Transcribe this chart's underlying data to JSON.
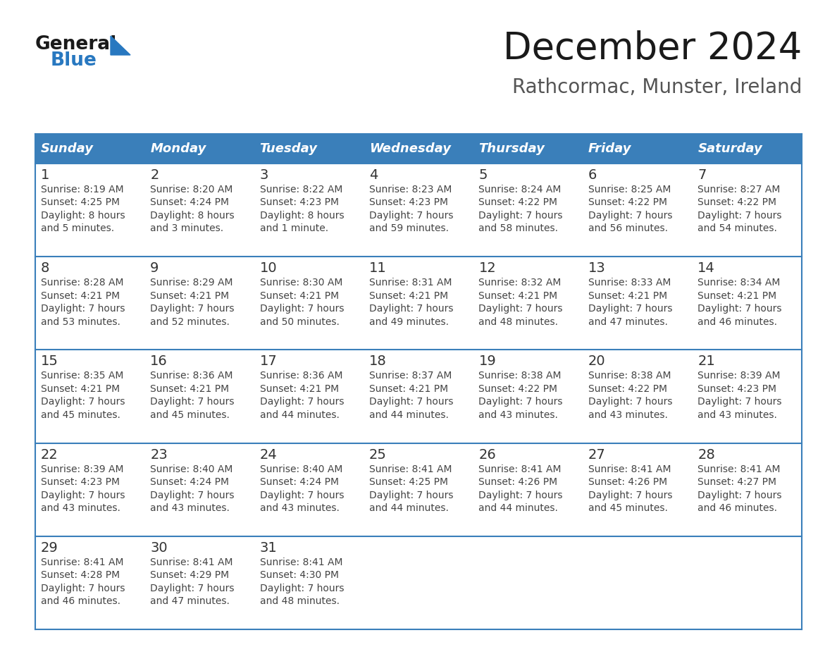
{
  "title": "December 2024",
  "subtitle": "Rathcormac, Munster, Ireland",
  "header_bg": "#3a7fba",
  "header_text_color": "#ffffff",
  "day_names": [
    "Sunday",
    "Monday",
    "Tuesday",
    "Wednesday",
    "Thursday",
    "Friday",
    "Saturday"
  ],
  "cell_bg": "#ffffff",
  "border_color": "#3a7fba",
  "day_number_color": "#333333",
  "info_color": "#444444",
  "weeks": [
    [
      {
        "day": 1,
        "sunrise": "8:19 AM",
        "sunset": "4:25 PM",
        "daylight": "8 hours",
        "daylight2": "and 5 minutes."
      },
      {
        "day": 2,
        "sunrise": "8:20 AM",
        "sunset": "4:24 PM",
        "daylight": "8 hours",
        "daylight2": "and 3 minutes."
      },
      {
        "day": 3,
        "sunrise": "8:22 AM",
        "sunset": "4:23 PM",
        "daylight": "8 hours",
        "daylight2": "and 1 minute."
      },
      {
        "day": 4,
        "sunrise": "8:23 AM",
        "sunset": "4:23 PM",
        "daylight": "7 hours",
        "daylight2": "and 59 minutes."
      },
      {
        "day": 5,
        "sunrise": "8:24 AM",
        "sunset": "4:22 PM",
        "daylight": "7 hours",
        "daylight2": "and 58 minutes."
      },
      {
        "day": 6,
        "sunrise": "8:25 AM",
        "sunset": "4:22 PM",
        "daylight": "7 hours",
        "daylight2": "and 56 minutes."
      },
      {
        "day": 7,
        "sunrise": "8:27 AM",
        "sunset": "4:22 PM",
        "daylight": "7 hours",
        "daylight2": "and 54 minutes."
      }
    ],
    [
      {
        "day": 8,
        "sunrise": "8:28 AM",
        "sunset": "4:21 PM",
        "daylight": "7 hours",
        "daylight2": "and 53 minutes."
      },
      {
        "day": 9,
        "sunrise": "8:29 AM",
        "sunset": "4:21 PM",
        "daylight": "7 hours",
        "daylight2": "and 52 minutes."
      },
      {
        "day": 10,
        "sunrise": "8:30 AM",
        "sunset": "4:21 PM",
        "daylight": "7 hours",
        "daylight2": "and 50 minutes."
      },
      {
        "day": 11,
        "sunrise": "8:31 AM",
        "sunset": "4:21 PM",
        "daylight": "7 hours",
        "daylight2": "and 49 minutes."
      },
      {
        "day": 12,
        "sunrise": "8:32 AM",
        "sunset": "4:21 PM",
        "daylight": "7 hours",
        "daylight2": "and 48 minutes."
      },
      {
        "day": 13,
        "sunrise": "8:33 AM",
        "sunset": "4:21 PM",
        "daylight": "7 hours",
        "daylight2": "and 47 minutes."
      },
      {
        "day": 14,
        "sunrise": "8:34 AM",
        "sunset": "4:21 PM",
        "daylight": "7 hours",
        "daylight2": "and 46 minutes."
      }
    ],
    [
      {
        "day": 15,
        "sunrise": "8:35 AM",
        "sunset": "4:21 PM",
        "daylight": "7 hours",
        "daylight2": "and 45 minutes."
      },
      {
        "day": 16,
        "sunrise": "8:36 AM",
        "sunset": "4:21 PM",
        "daylight": "7 hours",
        "daylight2": "and 45 minutes."
      },
      {
        "day": 17,
        "sunrise": "8:36 AM",
        "sunset": "4:21 PM",
        "daylight": "7 hours",
        "daylight2": "and 44 minutes."
      },
      {
        "day": 18,
        "sunrise": "8:37 AM",
        "sunset": "4:21 PM",
        "daylight": "7 hours",
        "daylight2": "and 44 minutes."
      },
      {
        "day": 19,
        "sunrise": "8:38 AM",
        "sunset": "4:22 PM",
        "daylight": "7 hours",
        "daylight2": "and 43 minutes."
      },
      {
        "day": 20,
        "sunrise": "8:38 AM",
        "sunset": "4:22 PM",
        "daylight": "7 hours",
        "daylight2": "and 43 minutes."
      },
      {
        "day": 21,
        "sunrise": "8:39 AM",
        "sunset": "4:23 PM",
        "daylight": "7 hours",
        "daylight2": "and 43 minutes."
      }
    ],
    [
      {
        "day": 22,
        "sunrise": "8:39 AM",
        "sunset": "4:23 PM",
        "daylight": "7 hours",
        "daylight2": "and 43 minutes."
      },
      {
        "day": 23,
        "sunrise": "8:40 AM",
        "sunset": "4:24 PM",
        "daylight": "7 hours",
        "daylight2": "and 43 minutes."
      },
      {
        "day": 24,
        "sunrise": "8:40 AM",
        "sunset": "4:24 PM",
        "daylight": "7 hours",
        "daylight2": "and 43 minutes."
      },
      {
        "day": 25,
        "sunrise": "8:41 AM",
        "sunset": "4:25 PM",
        "daylight": "7 hours",
        "daylight2": "and 44 minutes."
      },
      {
        "day": 26,
        "sunrise": "8:41 AM",
        "sunset": "4:26 PM",
        "daylight": "7 hours",
        "daylight2": "and 44 minutes."
      },
      {
        "day": 27,
        "sunrise": "8:41 AM",
        "sunset": "4:26 PM",
        "daylight": "7 hours",
        "daylight2": "and 45 minutes."
      },
      {
        "day": 28,
        "sunrise": "8:41 AM",
        "sunset": "4:27 PM",
        "daylight": "7 hours",
        "daylight2": "and 46 minutes."
      }
    ],
    [
      {
        "day": 29,
        "sunrise": "8:41 AM",
        "sunset": "4:28 PM",
        "daylight": "7 hours",
        "daylight2": "and 46 minutes."
      },
      {
        "day": 30,
        "sunrise": "8:41 AM",
        "sunset": "4:29 PM",
        "daylight": "7 hours",
        "daylight2": "and 47 minutes."
      },
      {
        "day": 31,
        "sunrise": "8:41 AM",
        "sunset": "4:30 PM",
        "daylight": "7 hours",
        "daylight2": "and 48 minutes."
      },
      null,
      null,
      null,
      null
    ]
  ],
  "logo_color1": "#1a1a1a",
  "logo_color2": "#2878c0",
  "title_fontsize": 38,
  "subtitle_fontsize": 20,
  "header_fontsize": 13,
  "day_num_fontsize": 14,
  "info_fontsize": 10
}
